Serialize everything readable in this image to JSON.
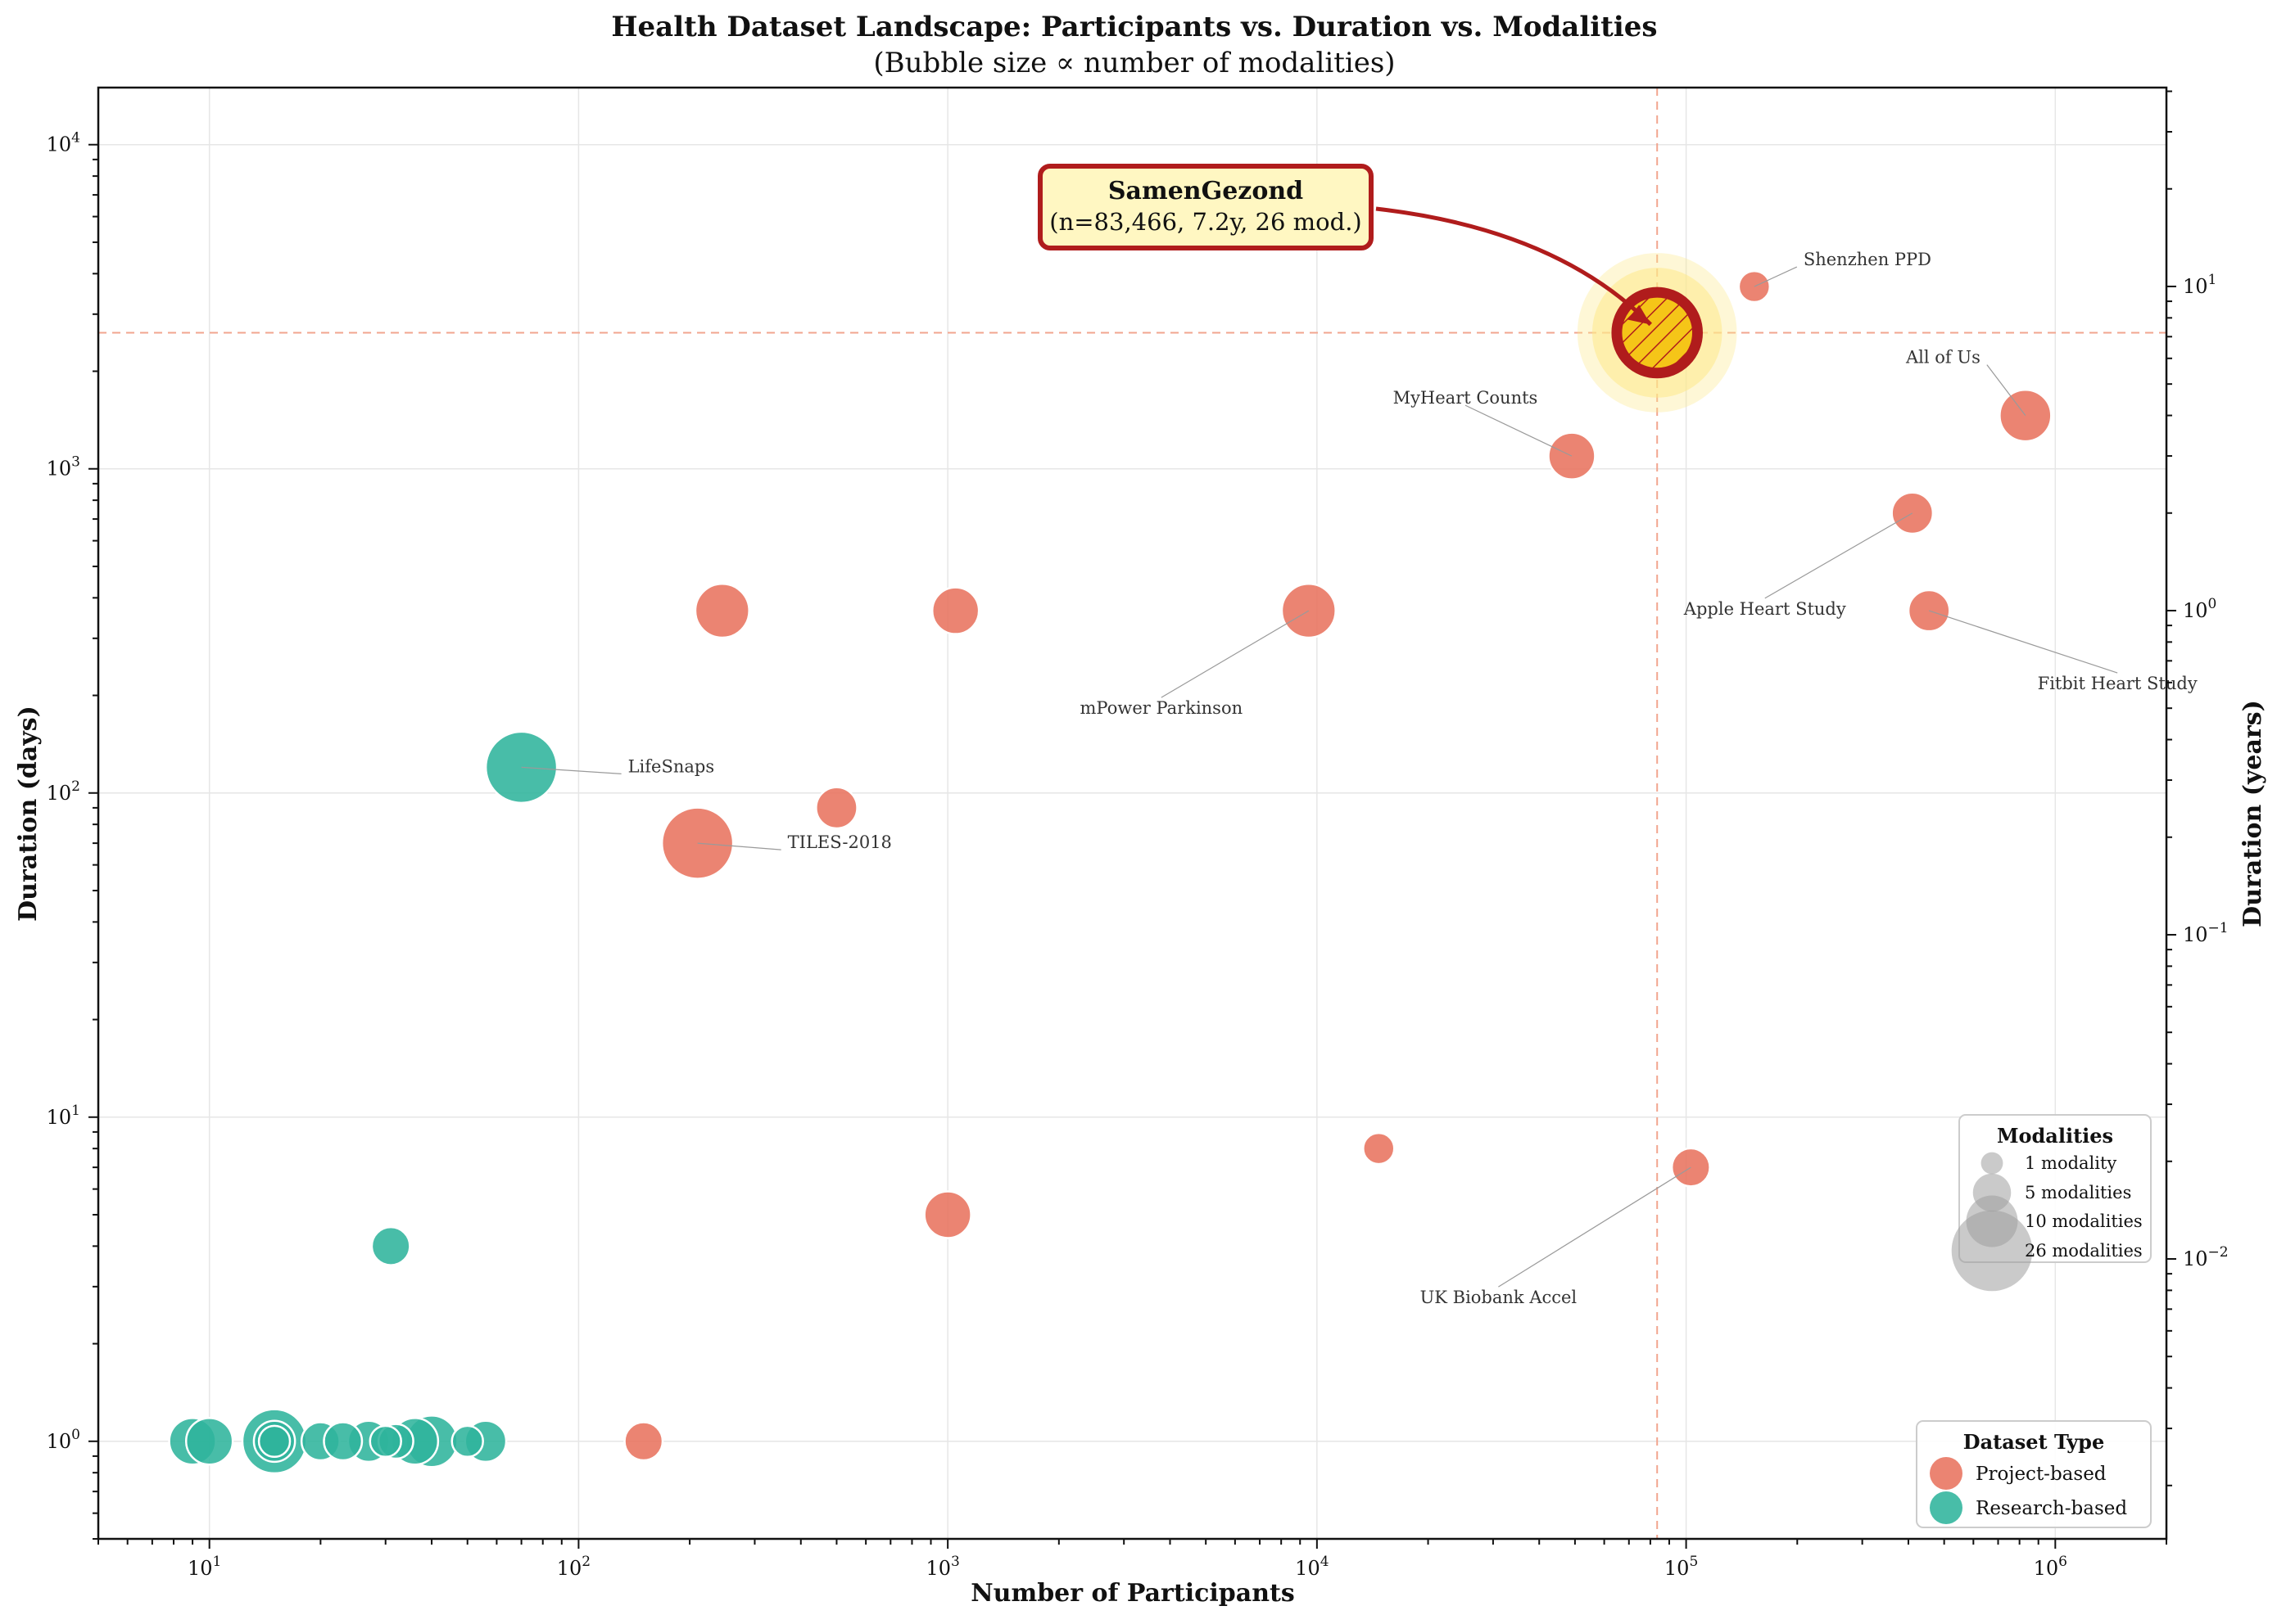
{
  "chart_data": {
    "type": "scatter",
    "title": "Health Dataset Landscape: Participants vs. Duration vs. Modalities",
    "subtitle": "(Bubble size ∝ number of modalities)",
    "xlabel": "Number of Participants",
    "ylabel": "Duration (days)",
    "ylabel_right": "Duration (years)",
    "xscale": "log",
    "yscale": "log",
    "xlim": [
      5,
      2000000
    ],
    "ylim": [
      0.5,
      15000
    ],
    "x_ticks": [
      {
        "value": 10,
        "mantissa": "10",
        "exp": "1"
      },
      {
        "value": 100,
        "mantissa": "10",
        "exp": "2"
      },
      {
        "value": 1000,
        "mantissa": "10",
        "exp": "3"
      },
      {
        "value": 10000,
        "mantissa": "10",
        "exp": "4"
      },
      {
        "value": 100000,
        "mantissa": "10",
        "exp": "5"
      },
      {
        "value": 1000000,
        "mantissa": "10",
        "exp": "6"
      }
    ],
    "y_ticks": [
      {
        "value": 1,
        "mantissa": "10",
        "exp": "0"
      },
      {
        "value": 10,
        "mantissa": "10",
        "exp": "1"
      },
      {
        "value": 100,
        "mantissa": "10",
        "exp": "2"
      },
      {
        "value": 1000,
        "mantissa": "10",
        "exp": "3"
      },
      {
        "value": 10000,
        "mantissa": "10",
        "exp": "4"
      }
    ],
    "y_right_ticks": [
      {
        "value": 0.01,
        "mantissa": "10",
        "exp": "−2"
      },
      {
        "value": 0.1,
        "mantissa": "10",
        "exp": "−1"
      },
      {
        "value": 1,
        "mantissa": "10",
        "exp": "0"
      },
      {
        "value": 10,
        "mantissa": "10",
        "exp": "1"
      }
    ],
    "grid": true,
    "colors": {
      "project": "#e8735f",
      "research": "#2fb49c",
      "highlight_fill": "#f5c518",
      "highlight_edge": "#b01c1c",
      "highlight_glow": "#fde98a",
      "reference_line": "#f2a58f",
      "annotation_box_fill": "#fff7c2"
    },
    "series": [
      {
        "name": "Project-based",
        "points": [
          {
            "x": 830000,
            "y": 1460,
            "modalities": 10,
            "label": "All of Us"
          },
          {
            "x": 410000,
            "y": 730,
            "modalities": 6,
            "label": "Apple Heart Study"
          },
          {
            "x": 455000,
            "y": 365,
            "modalities": 6,
            "label": "Fitbit Heart Study"
          },
          {
            "x": 153000,
            "y": 3650,
            "modalities": 3,
            "label": "Shenzhen PPD"
          },
          {
            "x": 49000,
            "y": 1095,
            "modalities": 8,
            "label": "MyHeart Counts"
          },
          {
            "x": 9500,
            "y": 365,
            "modalities": 11,
            "label": "mPower Parkinson"
          },
          {
            "x": 103000,
            "y": 7,
            "modalities": 5,
            "label": "UK Biobank Accel"
          },
          {
            "x": 14700,
            "y": 8,
            "modalities": 3
          },
          {
            "x": 1050,
            "y": 365,
            "modalities": 8
          },
          {
            "x": 245,
            "y": 365,
            "modalities": 11
          },
          {
            "x": 500,
            "y": 90,
            "modalities": 6
          },
          {
            "x": 210,
            "y": 70,
            "modalities": 20,
            "label": "TILES-2018"
          },
          {
            "x": 1000,
            "y": 5,
            "modalities": 8
          },
          {
            "x": 150,
            "y": 1,
            "modalities": 5
          }
        ]
      },
      {
        "name": "Research-based",
        "points": [
          {
            "x": 70,
            "y": 120,
            "modalities": 20,
            "label": "LifeSnaps"
          },
          {
            "x": 31,
            "y": 4,
            "modalities": 5
          },
          {
            "x": 9,
            "y": 1,
            "modalities": 8
          },
          {
            "x": 10,
            "y": 1,
            "modalities": 8
          },
          {
            "x": 15,
            "y": 1,
            "modalities": 16
          },
          {
            "x": 15,
            "y": 1,
            "modalities": 6
          },
          {
            "x": 15,
            "y": 1,
            "modalities": 3
          },
          {
            "x": 20,
            "y": 1,
            "modalities": 5
          },
          {
            "x": 23,
            "y": 1,
            "modalities": 5
          },
          {
            "x": 27,
            "y": 1,
            "modalities": 6
          },
          {
            "x": 30,
            "y": 1,
            "modalities": 3
          },
          {
            "x": 32,
            "y": 1,
            "modalities": 4
          },
          {
            "x": 36,
            "y": 1,
            "modalities": 8
          },
          {
            "x": 40,
            "y": 1,
            "modalities": 10
          },
          {
            "x": 50,
            "y": 1,
            "modalities": 3
          },
          {
            "x": 56,
            "y": 1,
            "modalities": 6
          }
        ]
      }
    ],
    "highlight": {
      "name": "SamenGezond",
      "x": 83466,
      "y": 2630,
      "modalities": 26,
      "note": "(n=83,466, 7.2y, 26 mod.)"
    },
    "size_legend": {
      "title": "Modalities",
      "entries": [
        {
          "label": "1 modality",
          "modalities": 1
        },
        {
          "label": "5 modalities",
          "modalities": 5
        },
        {
          "label": "10 modalities",
          "modalities": 10
        },
        {
          "label": "26 modalities",
          "modalities": 26
        }
      ],
      "placement": "right"
    },
    "type_legend": {
      "title": "Dataset Type",
      "entries": [
        "Project-based",
        "Research-based"
      ],
      "placement": "bottom-right"
    }
  }
}
